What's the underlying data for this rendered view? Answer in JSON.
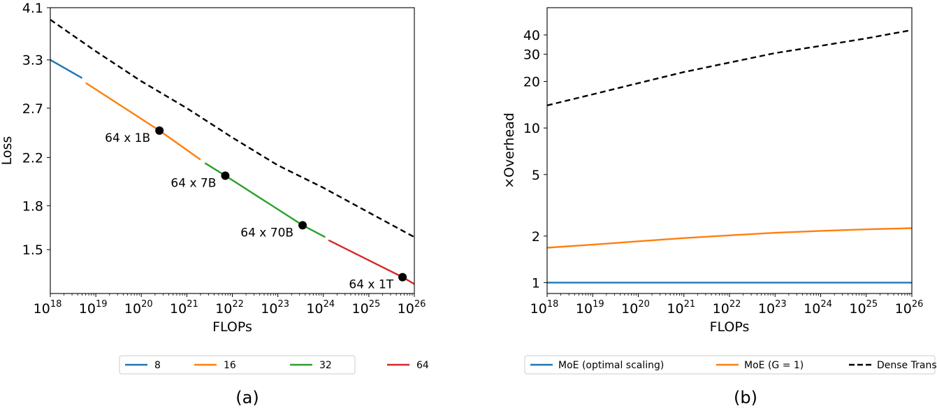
{
  "chart_data": [
    {
      "panel_label": "(a)",
      "type": "line",
      "xlabel": "FLOPs",
      "ylabel": "Loss",
      "x_scale": "log",
      "y_scale": "log",
      "xlim": [
        1e+18,
        1e+26
      ],
      "ylim": [
        1.25,
        4.1
      ],
      "x_ticks": [
        {
          "base": "10",
          "exp": "18",
          "value": 1e+18
        },
        {
          "base": "10",
          "exp": "19",
          "value": 1e+19
        },
        {
          "base": "10",
          "exp": "20",
          "value": 1e+20
        },
        {
          "base": "10",
          "exp": "21",
          "value": 1e+21
        },
        {
          "base": "10",
          "exp": "22",
          "value": 1e+22
        },
        {
          "base": "10",
          "exp": "23",
          "value": 1e+23
        },
        {
          "base": "10",
          "exp": "24",
          "value": 1e+24
        },
        {
          "base": "10",
          "exp": "25",
          "value": 1e+25
        },
        {
          "base": "10",
          "exp": "26",
          "value": 1e+26
        }
      ],
      "y_ticks": [
        {
          "label": "4.1",
          "value": 4.1
        },
        {
          "label": "3.3",
          "value": 3.3
        },
        {
          "label": "2.7",
          "value": 2.7
        },
        {
          "label": "2.2",
          "value": 2.2
        },
        {
          "label": "1.8",
          "value": 1.8
        },
        {
          "label": "1.5",
          "value": 1.5
        }
      ],
      "grid": false,
      "legend_position": "below",
      "series": [
        {
          "name": "8",
          "color": "#1f77b4",
          "style": "solid",
          "x": [
            1e+18,
            1e+18,
            5e+18
          ],
          "y": [
            3.3,
            3.3,
            3.06
          ]
        },
        {
          "name": "16",
          "color": "#ff7f0e",
          "style": "solid",
          "x": [
            6e+18,
            2.5e+20,
            2e+21
          ],
          "y": [
            3.0,
            2.46,
            2.18
          ]
        },
        {
          "name": "32",
          "color": "#2ca02c",
          "style": "solid",
          "x": [
            2.5e+21,
            7e+21,
            3.5e+23,
            1.1e+24
          ],
          "y": [
            2.15,
            2.04,
            1.66,
            1.58
          ]
        },
        {
          "name": "64",
          "color": "#d62728",
          "style": "solid",
          "x": [
            1.3e+24,
            5.5e+25,
            1e+26
          ],
          "y": [
            1.56,
            1.338,
            1.3
          ]
        },
        {
          "name": "",
          "color": "#000000",
          "style": "dashed",
          "x": [
            1e+18,
            1e+19,
            1e+20,
            1e+21,
            1e+22,
            1e+23,
            1e+24,
            1e+25,
            1e+26
          ],
          "y": [
            3.9,
            3.42,
            3.02,
            2.7,
            2.39,
            2.13,
            1.94,
            1.75,
            1.58
          ]
        }
      ],
      "annotations": [
        {
          "label": "64 x 1B",
          "x": 2.5e+20,
          "y": 2.46
        },
        {
          "label": "64 x 7B",
          "x": 7e+21,
          "y": 2.04
        },
        {
          "label": "64 x 70B",
          "x": 3.5e+23,
          "y": 1.66
        },
        {
          "label": "64 x 1T",
          "x": 5.5e+25,
          "y": 1.338
        }
      ]
    },
    {
      "panel_label": "(b)",
      "type": "line",
      "xlabel": "FLOPs",
      "ylabel": "×Overhead",
      "x_scale": "log",
      "y_scale": "log",
      "xlim": [
        1e+18,
        1e+26
      ],
      "ylim": [
        0.85,
        60
      ],
      "x_ticks": [
        {
          "base": "10",
          "exp": "18",
          "value": 1e+18
        },
        {
          "base": "10",
          "exp": "19",
          "value": 1e+19
        },
        {
          "base": "10",
          "exp": "20",
          "value": 1e+20
        },
        {
          "base": "10",
          "exp": "21",
          "value": 1e+21
        },
        {
          "base": "10",
          "exp": "22",
          "value": 1e+22
        },
        {
          "base": "10",
          "exp": "23",
          "value": 1e+23
        },
        {
          "base": "10",
          "exp": "24",
          "value": 1e+24
        },
        {
          "base": "10",
          "exp": "25",
          "value": 1e+25
        },
        {
          "base": "10",
          "exp": "26",
          "value": 1e+26
        }
      ],
      "y_ticks": [
        {
          "label": "40",
          "value": 40
        },
        {
          "label": "30",
          "value": 30
        },
        {
          "label": "20",
          "value": 20
        },
        {
          "label": "10",
          "value": 10
        },
        {
          "label": "5",
          "value": 5
        },
        {
          "label": "2",
          "value": 2
        },
        {
          "label": "1",
          "value": 1
        }
      ],
      "grid": false,
      "legend_position": "below",
      "series": [
        {
          "name": "MoE (optimal scaling)",
          "color": "#1f77b4",
          "style": "solid",
          "x": [
            1e+18,
            1e+26
          ],
          "y": [
            1.0,
            1.0
          ]
        },
        {
          "name": "MoE (G = 1)",
          "color": "#ff7f0e",
          "style": "solid",
          "x": [
            1e+18,
            1e+19,
            1e+20,
            1e+21,
            1e+22,
            1e+23,
            1e+24,
            1e+25,
            1e+26
          ],
          "y": [
            1.68,
            1.76,
            1.85,
            1.94,
            2.02,
            2.1,
            2.16,
            2.21,
            2.25
          ]
        },
        {
          "name": "Dense Transformer",
          "color": "#000000",
          "style": "dashed",
          "x": [
            1e+18,
            1e+19,
            1e+20,
            1e+21,
            1e+22,
            1e+23,
            1e+24,
            1e+25,
            1e+26
          ],
          "y": [
            14,
            16.5,
            19.5,
            23,
            26.5,
            30.5,
            34,
            38,
            43
          ]
        }
      ]
    }
  ]
}
